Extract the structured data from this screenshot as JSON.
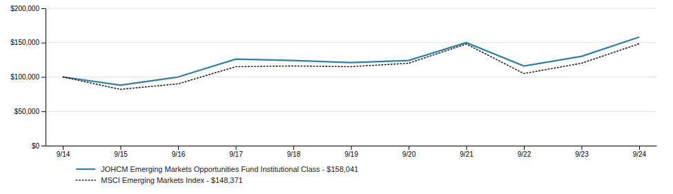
{
  "chart_data": {
    "type": "line",
    "categories": [
      "9/14",
      "9/15",
      "9/16",
      "9/17",
      "9/18",
      "9/19",
      "9/20",
      "9/21",
      "9/22",
      "9/23",
      "9/24"
    ],
    "series": [
      {
        "name": "JOHCM Emerging Markets Opportunities Fund Institutional Class - $158,041",
        "color": "#2e7ea6",
        "line_style": "solid",
        "values": [
          100000,
          88000,
          100000,
          126000,
          124000,
          121000,
          124000,
          150000,
          116000,
          130000,
          158041
        ]
      },
      {
        "name": "MSCI Emerging Markets Index - $148,371",
        "color": "#1a1a1a",
        "line_style": "dotted",
        "values": [
          100000,
          82000,
          90000,
          115000,
          116000,
          115000,
          120000,
          148000,
          105000,
          120000,
          148371
        ]
      }
    ],
    "ylim": [
      0,
      200000
    ],
    "yticks": [
      {
        "value": 0,
        "label": "$0"
      },
      {
        "value": 50000,
        "label": "$50,000"
      },
      {
        "value": 100000,
        "label": "$100,000"
      },
      {
        "value": 150000,
        "label": "$150,000"
      },
      {
        "value": 200000,
        "label": "$200,000"
      }
    ],
    "grid": true,
    "legend": "bottom"
  }
}
